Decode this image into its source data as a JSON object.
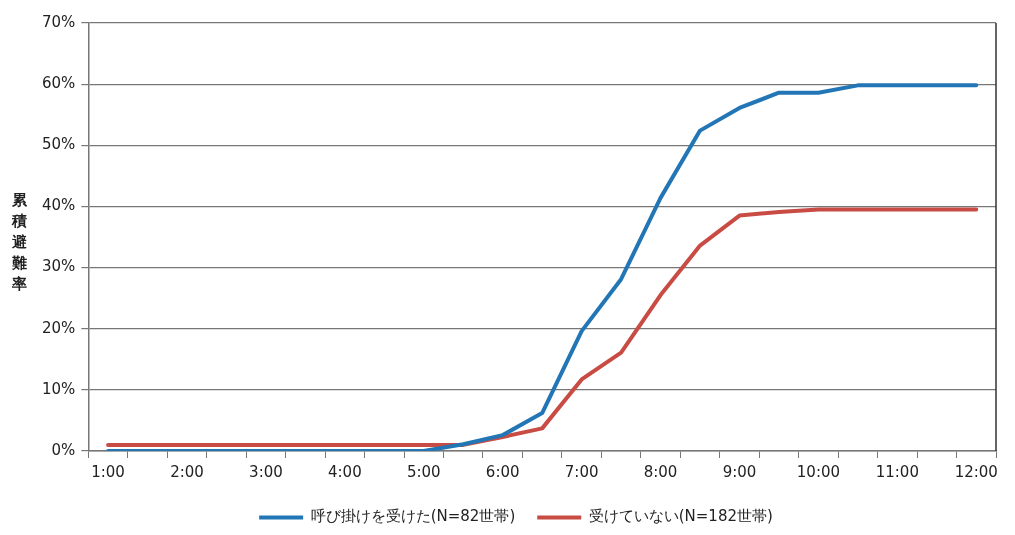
{
  "chart_data": {
    "type": "line",
    "ylabel": "累積避難率",
    "categories": [
      "1:00",
      null,
      "2:00",
      null,
      "3:00",
      null,
      "4:00",
      null,
      "5:00",
      null,
      "6:00",
      null,
      "7:00",
      null,
      "8:00",
      null,
      "9:00",
      null,
      "10:00",
      null,
      "11:00",
      null,
      "12:00"
    ],
    "series": [
      {
        "name": "呼び掛けを受けた(N=82世帯)",
        "color": "#2276b6",
        "values": [
          0,
          0,
          0,
          0,
          0,
          0,
          0,
          0,
          0,
          1.1,
          2.6,
          6.2,
          19.6,
          28.1,
          41.4,
          52.4,
          56.1,
          58.6,
          58.6,
          59.8,
          59.8,
          59.8,
          59.8
        ]
      },
      {
        "name": "受けていない(N=182世帯)",
        "color": "#c84b44",
        "values": [
          1,
          1,
          1,
          1,
          1,
          1,
          1,
          1,
          1,
          1,
          2.3,
          3.7,
          11.7,
          16.1,
          25.5,
          33.6,
          38.5,
          39.1,
          39.5,
          39.5,
          39.5,
          39.5,
          39.5
        ]
      }
    ],
    "ylim": [
      0,
      70
    ],
    "yticks": [
      {
        "value": 0,
        "label": "0%"
      },
      {
        "value": 10,
        "label": "10%"
      },
      {
        "value": 20,
        "label": "20%"
      },
      {
        "value": 30,
        "label": "30%"
      },
      {
        "value": 40,
        "label": "40%"
      },
      {
        "value": 50,
        "label": "50%"
      },
      {
        "value": 60,
        "label": "60%"
      },
      {
        "value": 70,
        "label": "70%"
      }
    ],
    "grid": "y",
    "legend": "bottom",
    "marker": "none",
    "line_style": "solid"
  }
}
